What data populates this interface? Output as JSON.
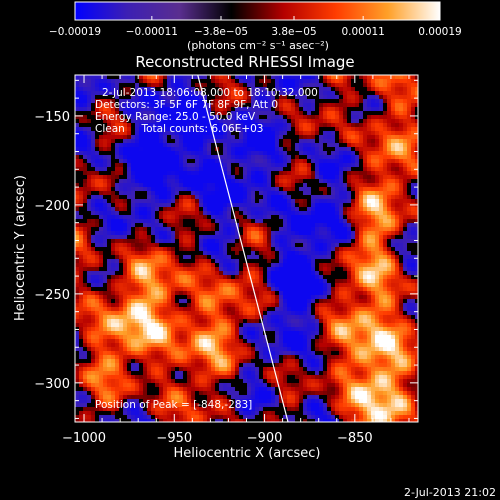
{
  "chart_data": {
    "type": "heatmap",
    "title": "Reconstructed RHESSI Image",
    "xlabel": "Heliocentric X (arcsec)",
    "ylabel": "Heliocentric Y (arcsec)",
    "xlim": [
      -1005,
      -815
    ],
    "ylim": [
      -322,
      -127
    ],
    "x_ticks": [
      -1000,
      -950,
      -900,
      -850
    ],
    "x_tick_labels": [
      "−1000",
      "−950",
      "−900",
      "−850"
    ],
    "y_ticks": [
      -150,
      -200,
      -250,
      -300
    ],
    "y_tick_labels": [
      "−150",
      "−200",
      "−250",
      "−300"
    ],
    "colorbar": {
      "min": -0.00019,
      "max": 0.00019,
      "ticks": [
        -0.00019,
        -0.00011,
        -3.8e-05,
        3.8e-05,
        0.00011,
        0.00019
      ],
      "tick_labels": [
        "−0.00019",
        "−0.00011",
        "−3.8e−05",
        "3.8e−05",
        "0.00011",
        "0.00019"
      ],
      "unit_label": "(photons cm⁻² s⁻¹ asec⁻²)",
      "stops": [
        "#0000ff",
        "#3c1fb4",
        "#5a2e90",
        "#000000",
        "#b40000",
        "#ff3c00",
        "#ffa028",
        "#ffffff"
      ]
    },
    "annotations": {
      "time_range": "2-Jul-2013 18:06:08.000 to 18:10:32.000",
      "detectors": "Detectors: 3F 5F 6F 7F 8F 9F, Att 0",
      "energy_range": "Energy Range: 25.0 - 50.0 keV",
      "clean_counts": "Clean     Total counts: 6.06E+03",
      "peak": "Position of Peak = [-848,-283]"
    },
    "peak_position": [
      -848,
      -283
    ],
    "limb_line": [
      [
        -937,
        -127
      ],
      [
        -887,
        -322
      ]
    ],
    "grid": false,
    "legend": "none"
  },
  "footer": {
    "timestamp": "2-Jul-2013 21:02"
  }
}
